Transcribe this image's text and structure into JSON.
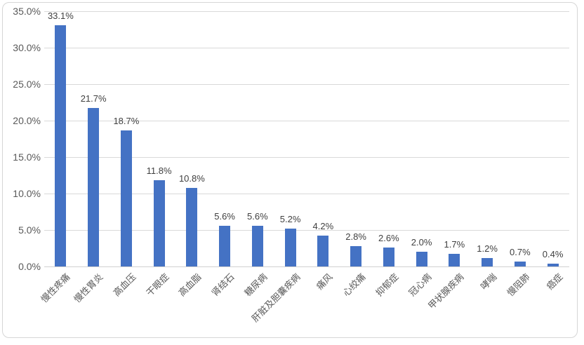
{
  "chart_data": {
    "type": "bar",
    "title": "",
    "xlabel": "",
    "ylabel": "",
    "categories": [
      "慢性疼痛",
      "慢性胃炎",
      "高血压",
      "干眼症",
      "高血脂",
      "肾结石",
      "糖尿病",
      "肝脏及胆囊疾病",
      "痛风",
      "心绞痛",
      "抑郁症",
      "冠心病",
      "甲状腺疾病",
      "哮喘",
      "慢阻肺",
      "癌症"
    ],
    "values": [
      33.1,
      21.7,
      18.7,
      11.8,
      10.8,
      5.6,
      5.6,
      5.2,
      4.2,
      2.8,
      2.6,
      2.0,
      1.7,
      1.2,
      0.7,
      0.4
    ],
    "data_labels": [
      "33.1%",
      "21.7%",
      "18.7%",
      "11.8%",
      "10.8%",
      "5.6%",
      "5.6%",
      "5.2%",
      "4.2%",
      "2.8%",
      "2.6%",
      "2.0%",
      "1.7%",
      "1.2%",
      "0.7%",
      "0.4%"
    ],
    "ylim": [
      0,
      35
    ],
    "y_ticks": {
      "values": [
        0,
        5,
        10,
        15,
        20,
        25,
        30,
        35
      ],
      "labels": [
        "0.0%",
        "5.0%",
        "10.0%",
        "15.0%",
        "20.0%",
        "25.0%",
        "30.0%",
        "35.0%"
      ]
    },
    "grid": true,
    "legend": false,
    "colors": {
      "bar": "#4472C4",
      "gridline": "#d9d9d9",
      "axis_line": "#d0d0d0",
      "axis_text": "#595959",
      "data_label_text": "#404040",
      "background": "#ffffff",
      "border": "#d6d6d6"
    }
  }
}
